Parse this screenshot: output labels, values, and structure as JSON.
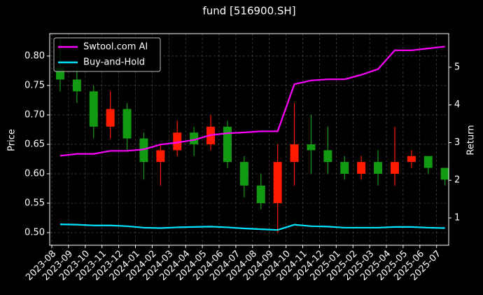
{
  "chart_data": {
    "type": "candlestick",
    "title": "fund [516900.SH]",
    "y_label": "Price",
    "y2_label": "Return",
    "x": [
      "2023-08",
      "2023-09",
      "2023-10",
      "2023-11",
      "2023-12",
      "2024-01",
      "2024-02",
      "2024-03",
      "2024-04",
      "2024-05",
      "2024-06",
      "2024-07",
      "2024-08",
      "2024-09",
      "2024-10",
      "2024-11",
      "2024-12",
      "2025-01",
      "2025-02",
      "2025-03",
      "2025-04",
      "2025-05",
      "2025-06",
      "2025-07"
    ],
    "open": [
      0.78,
      0.76,
      0.74,
      0.68,
      0.71,
      0.66,
      0.62,
      0.64,
      0.67,
      0.65,
      0.68,
      0.62,
      0.58,
      0.55,
      0.62,
      0.65,
      0.64,
      0.62,
      0.6,
      0.62,
      0.6,
      0.62,
      0.63,
      0.61
    ],
    "high": [
      0.83,
      0.78,
      0.75,
      0.74,
      0.72,
      0.67,
      0.65,
      0.69,
      0.68,
      0.7,
      0.69,
      0.63,
      0.6,
      0.65,
      0.72,
      0.7,
      0.68,
      0.63,
      0.63,
      0.64,
      0.68,
      0.64,
      0.63,
      0.61
    ],
    "low": [
      0.74,
      0.72,
      0.66,
      0.66,
      0.64,
      0.59,
      0.58,
      0.63,
      0.63,
      0.64,
      0.61,
      0.56,
      0.54,
      0.5,
      0.58,
      0.6,
      0.6,
      0.59,
      0.59,
      0.58,
      0.58,
      0.61,
      0.6,
      0.58
    ],
    "close": [
      0.76,
      0.74,
      0.68,
      0.71,
      0.66,
      0.62,
      0.64,
      0.67,
      0.65,
      0.68,
      0.62,
      0.58,
      0.55,
      0.62,
      0.65,
      0.64,
      0.62,
      0.6,
      0.62,
      0.6,
      0.62,
      0.63,
      0.61,
      0.59
    ],
    "up_color": "#ff1a00",
    "down_color": "#139a13",
    "series": [
      {
        "name": "Swtool.com AI",
        "color": "#ff00ff",
        "axis": "y2",
        "values": [
          2.65,
          2.7,
          2.7,
          2.78,
          2.78,
          2.82,
          2.95,
          3.0,
          3.07,
          3.2,
          3.25,
          3.27,
          3.3,
          3.3,
          4.55,
          4.65,
          4.68,
          4.68,
          4.8,
          4.95,
          5.45,
          5.45,
          5.5,
          5.55
        ]
      },
      {
        "name": "Buy-and-Hold",
        "color": "#00e5ff",
        "axis": "y2",
        "values": [
          0.83,
          0.82,
          0.8,
          0.8,
          0.78,
          0.74,
          0.73,
          0.75,
          0.76,
          0.77,
          0.75,
          0.72,
          0.7,
          0.68,
          0.82,
          0.78,
          0.77,
          0.74,
          0.74,
          0.74,
          0.76,
          0.76,
          0.74,
          0.73
        ]
      }
    ],
    "ylim": [
      0.4786,
      0.838
    ],
    "yticks": [
      {
        "value": 0.5,
        "label": "0.50"
      },
      {
        "value": 0.55,
        "label": "0.55"
      },
      {
        "value": 0.6,
        "label": "0.60"
      },
      {
        "value": 0.65,
        "label": "0.65"
      },
      {
        "value": 0.7,
        "label": "0.70"
      },
      {
        "value": 0.75,
        "label": "0.75"
      },
      {
        "value": 0.8,
        "label": "0.80"
      }
    ],
    "y2lim": [
      0.274,
      5.893
    ],
    "y2ticks": [
      1,
      2,
      3,
      4,
      5
    ],
    "grid": true,
    "legend": "upper left"
  }
}
